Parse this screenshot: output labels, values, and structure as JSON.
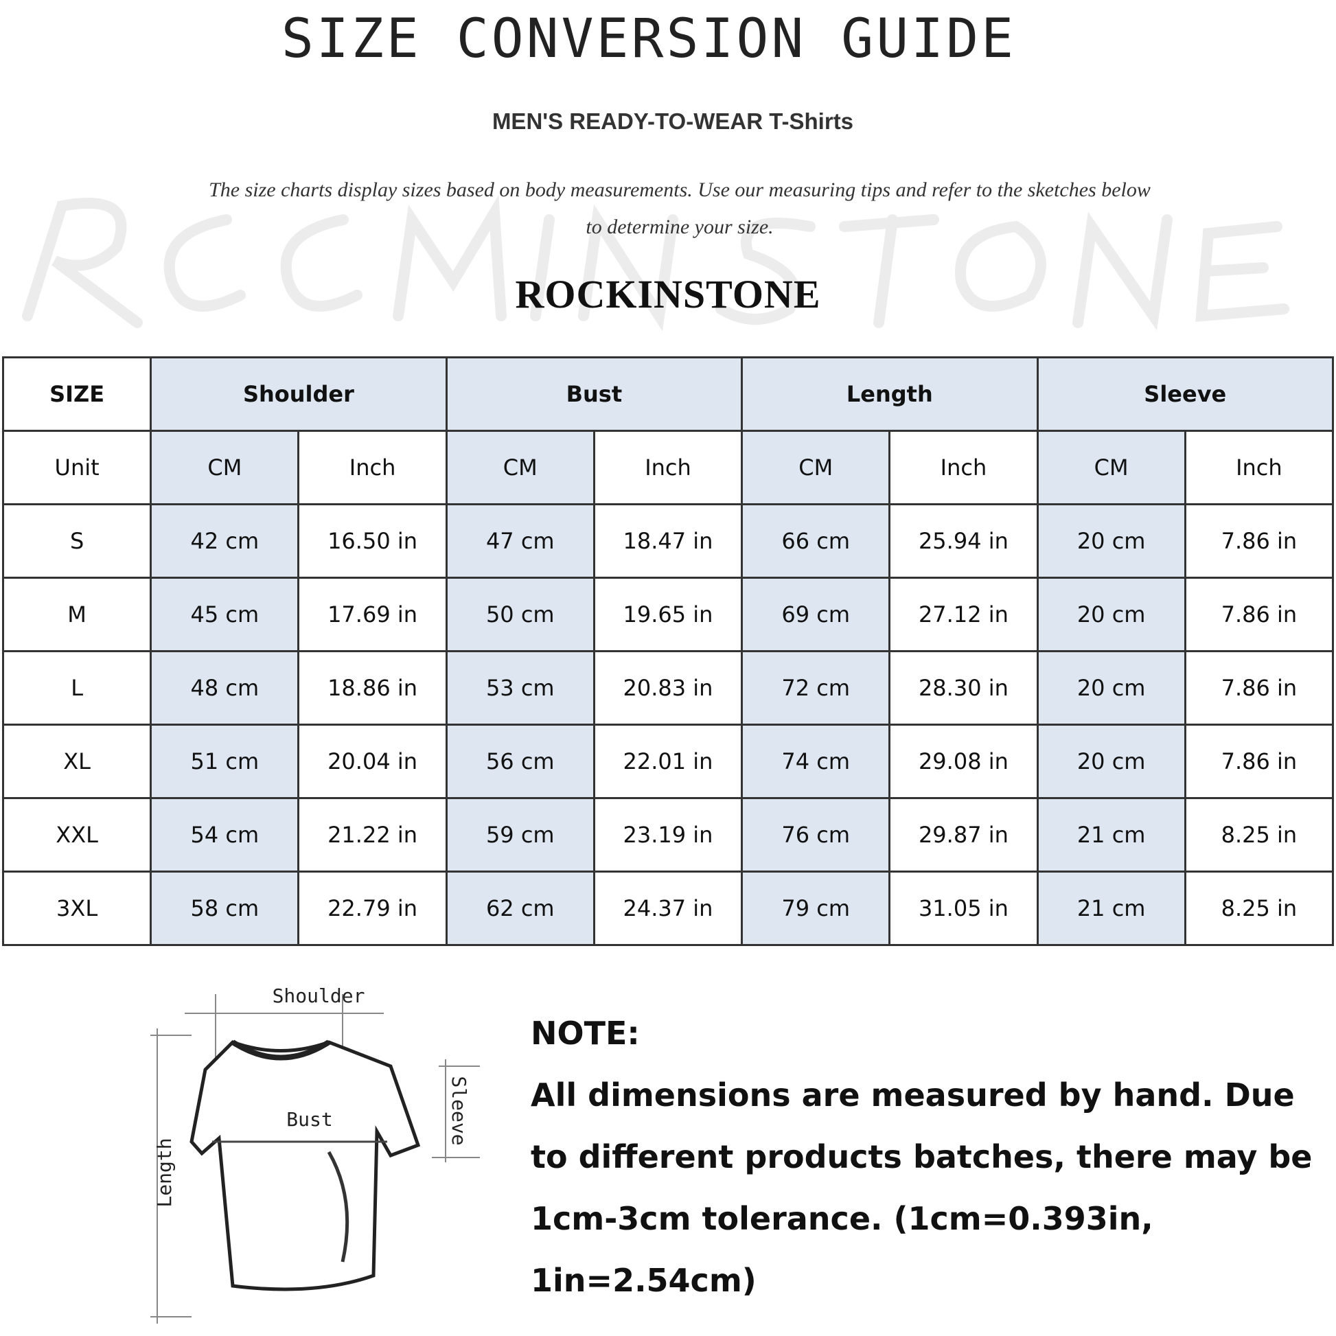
{
  "title": "SIZE CONVERSION GUIDE",
  "subtitle": "MEN'S READY-TO-WEAR T-Shirts",
  "description": "The size charts display sizes based on body measurements. Use our measuring tips and refer to the sketches below to determine your size.",
  "brand": "ROCKINSTONE",
  "watermark": "ROCKINSTONE",
  "table": {
    "size_header": "SIZE",
    "groups": [
      "Shoulder",
      "Bust",
      "Length",
      "Sleeve"
    ],
    "unit_label": "Unit",
    "units": [
      "CM",
      "Inch",
      "CM",
      "Inch",
      "CM",
      "Inch",
      "CM",
      "Inch"
    ],
    "rows": [
      {
        "size": "S",
        "cells": [
          "42 cm",
          "16.50 in",
          "47 cm",
          "18.47  in",
          "66 cm",
          "25.94  in",
          "20 cm",
          "7.86  in"
        ]
      },
      {
        "size": "M",
        "cells": [
          "45 cm",
          "17.69  in",
          "50 cm",
          "19.65  in",
          "69 cm",
          "27.12  in",
          "20 cm",
          "7.86  in"
        ]
      },
      {
        "size": "L",
        "cells": [
          "48 cm",
          "18.86  in",
          "53 cm",
          "20.83  in",
          "72 cm",
          "28.30  in",
          "20 cm",
          "7.86  in"
        ]
      },
      {
        "size": "XL",
        "cells": [
          "51 cm",
          "20.04  in",
          "56 cm",
          "22.01  in",
          "74 cm",
          "29.08  in",
          "20 cm",
          "7.86  in"
        ]
      },
      {
        "size": "XXL",
        "cells": [
          "54 cm",
          "21.22  in",
          "59 cm",
          "23.19  in",
          "76 cm",
          "29.87  in",
          "21 cm",
          "8.25  in"
        ]
      },
      {
        "size": "3XL",
        "cells": [
          "58 cm",
          "22.79  in",
          "62 cm",
          "24.37  in",
          "79 cm",
          "31.05  in",
          "21 cm",
          "8.25  in"
        ]
      }
    ]
  },
  "sketch": {
    "shoulder": "Shoulder",
    "bust": "Bust",
    "sleeve": "Sleeve",
    "length": "Length"
  },
  "note": {
    "heading": "NOTE:",
    "body": "All dimensions are measured by hand. Due to different products batches, there may be 1cm-3cm tolerance. (1cm=0.393in, 1in=2.54cm)"
  },
  "colors": {
    "header_fill": "#dde6f1",
    "border": "#333333"
  }
}
